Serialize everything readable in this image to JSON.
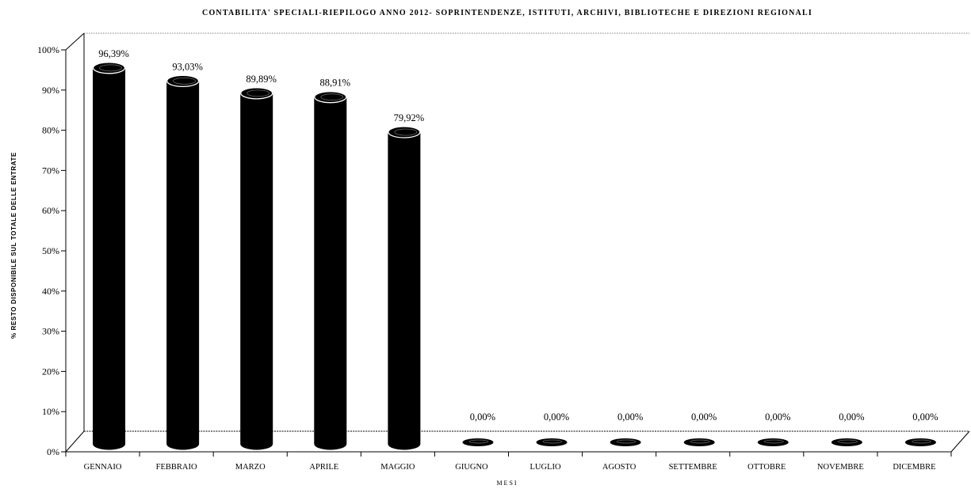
{
  "chart_data": {
    "type": "bar",
    "title": "CONTABILITA' SPECIALI-RIEPILOGO ANNO 2012- SOPRINTENDENZE, ISTITUTI, ARCHIVI, BIBLIOTECHE E DIREZIONI REGIONALI",
    "xlabel": "MESI",
    "ylabel": "% RESTO DISPONIBILE SUL TOTALE DELLE ENTRATE",
    "categories": [
      "GENNAIO",
      "FEBBRAIO",
      "MARZO",
      "APRILE",
      "MAGGIO",
      "GIUGNO",
      "LUGLIO",
      "AGOSTO",
      "SETTEMBRE",
      "OTTOBRE",
      "NOVEMBRE",
      "DICEMBRE"
    ],
    "values": [
      96.39,
      93.03,
      89.89,
      88.91,
      79.92,
      0,
      0,
      0,
      0,
      0,
      0,
      0
    ],
    "data_labels": [
      "96,39%",
      "93,03%",
      "89,89%",
      "88,91%",
      "79,92%",
      "0,00%",
      "0,00%",
      "0,00%",
      "0,00%",
      "0,00%",
      "0,00%",
      "0,00%"
    ],
    "ylim": [
      0,
      100
    ],
    "yticks": [
      "0%",
      "10%",
      "20%",
      "30%",
      "40%",
      "50%",
      "60%",
      "70%",
      "80%",
      "90%",
      "100%"
    ],
    "grid": false,
    "legend": "none",
    "bar_color": "#000000"
  }
}
